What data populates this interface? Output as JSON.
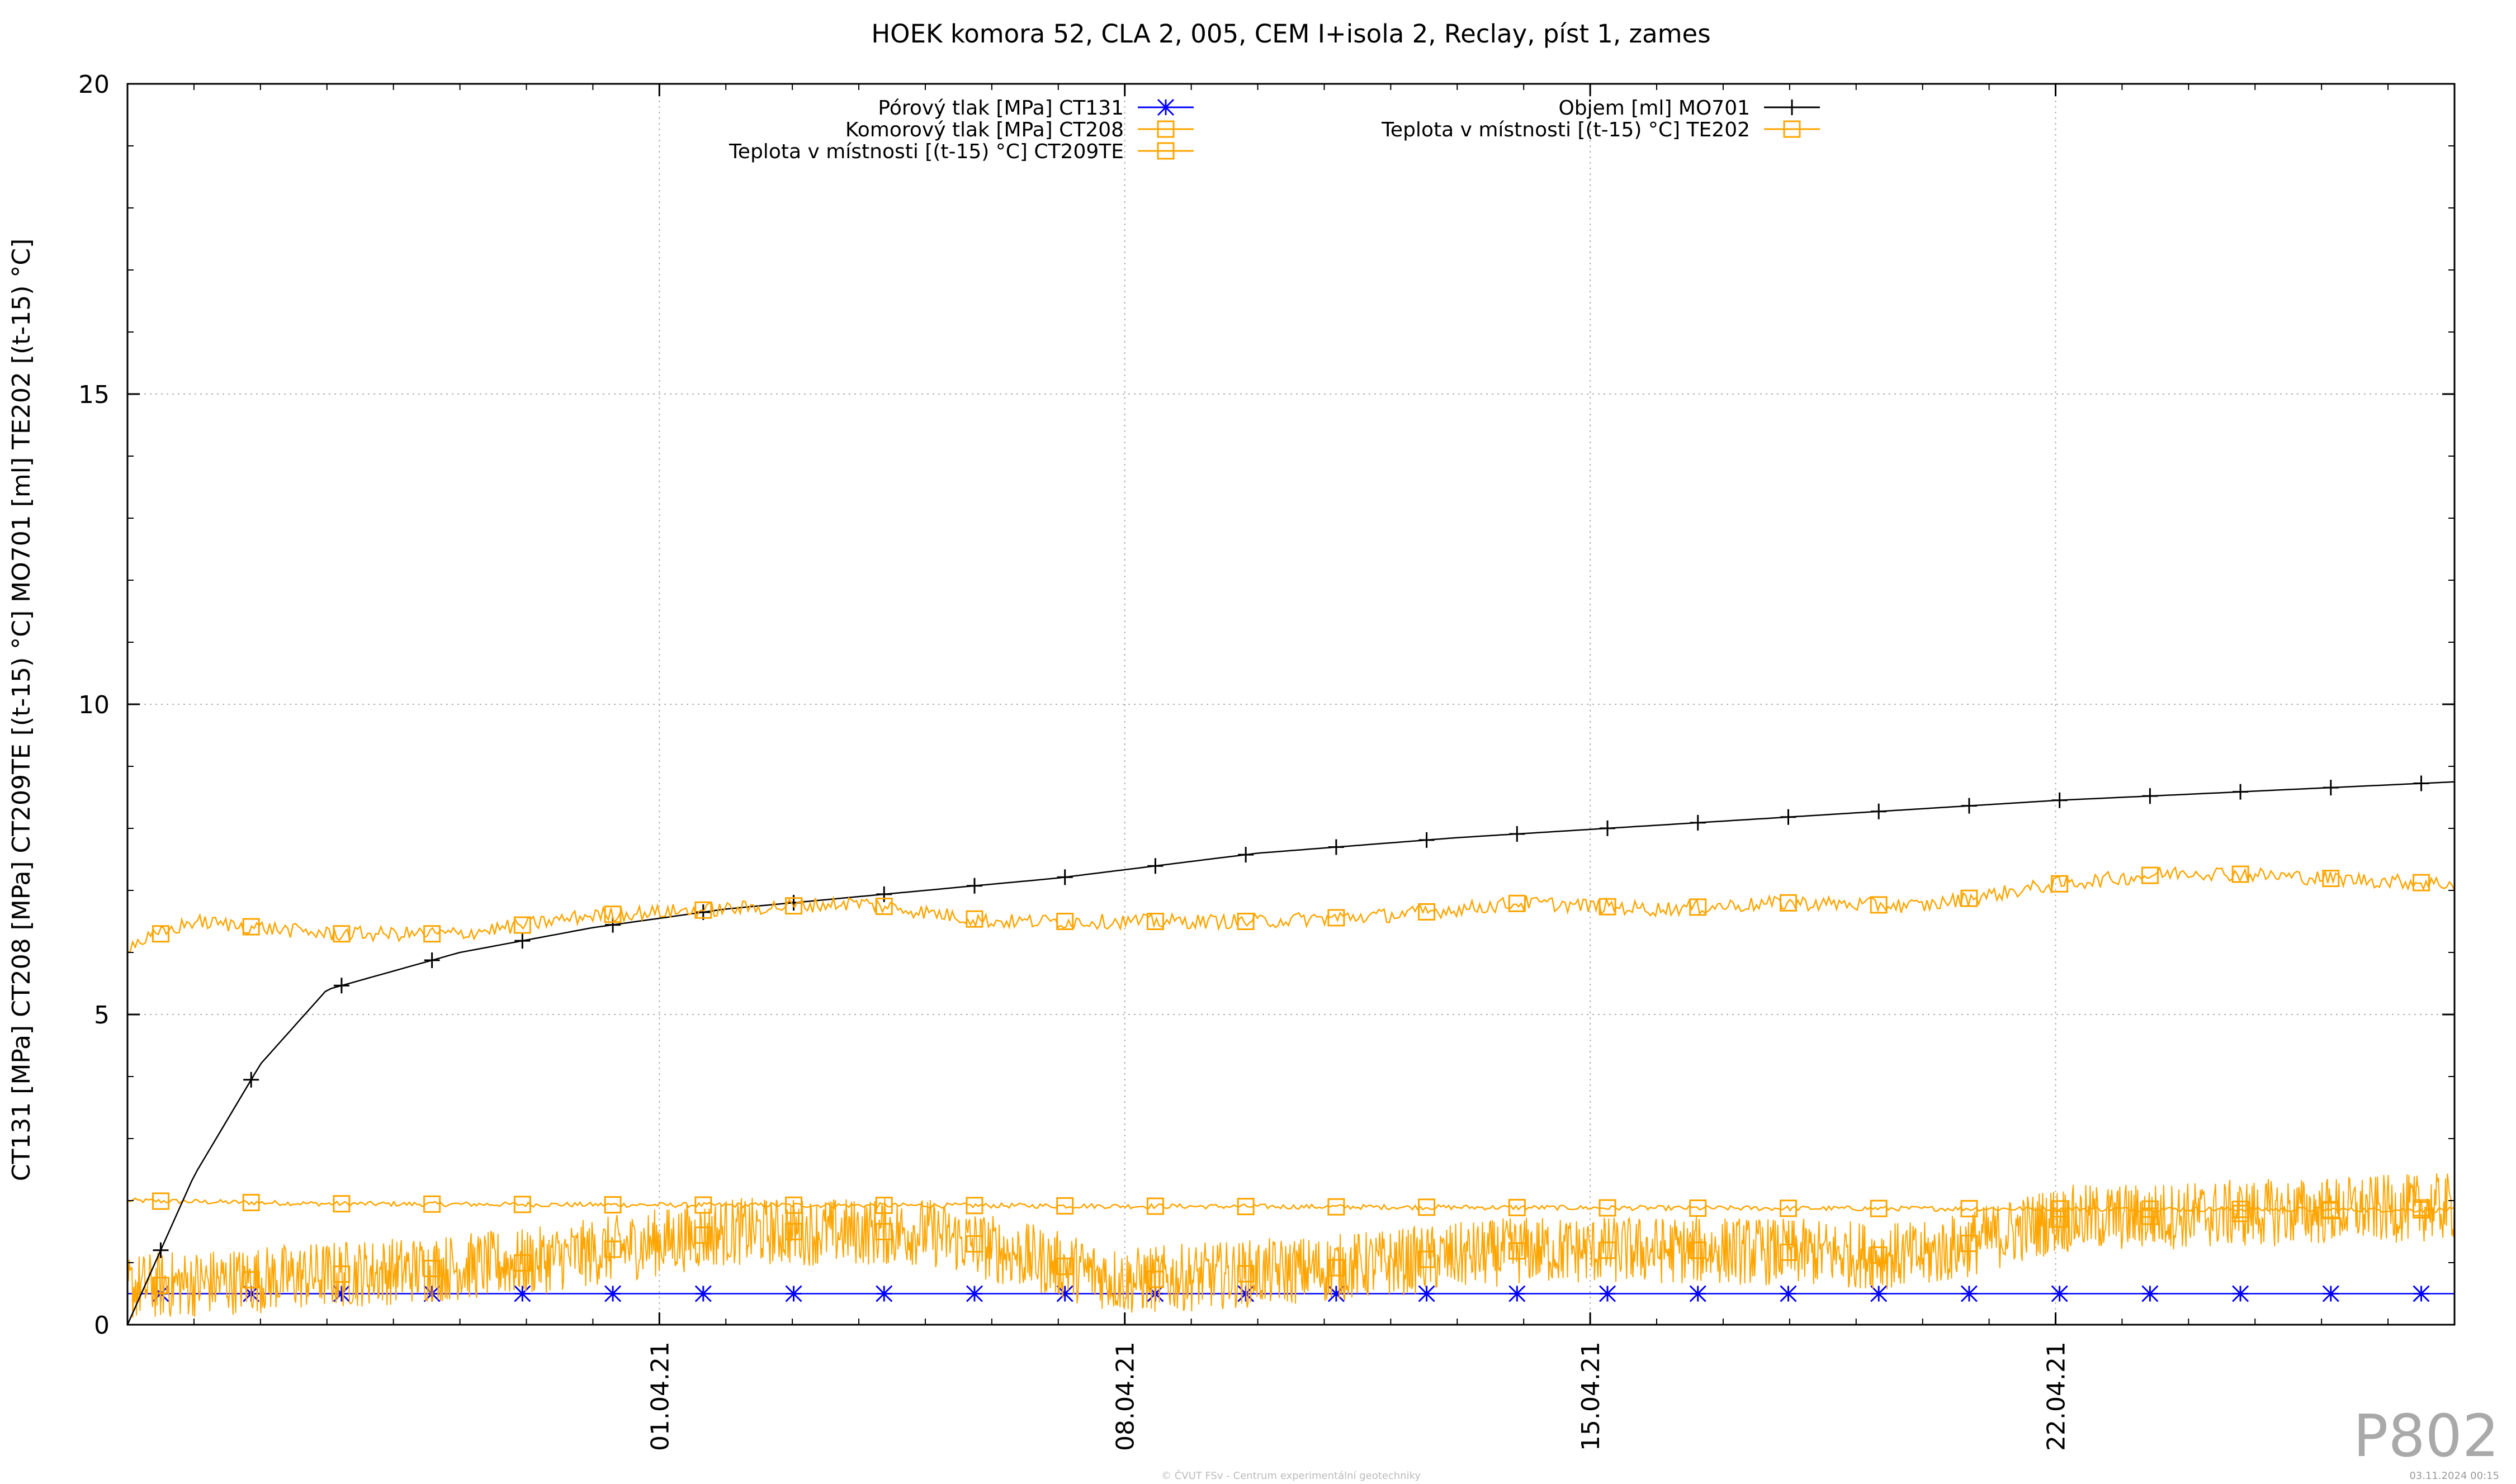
{
  "chart_data": {
    "type": "line",
    "title": "HOEK komora 52, CLA 2, 005, CEM I+isola 2, Reclay, píst 1, zames",
    "ylabel": "CT131 [MPa] CT208 [MPa] CT209TE [(t-15) °C] MO701 [ml] TE202 [(t-15) °C]",
    "xlabel": "",
    "ylim": [
      0,
      20
    ],
    "xlim": [
      "2021-03-24",
      "2021-04-28"
    ],
    "yticks": [
      0,
      5,
      10,
      15,
      20
    ],
    "xticks": [
      {
        "date": "2021-04-01",
        "label": "01.04.21"
      },
      {
        "date": "2021-04-08",
        "label": "08.04.21"
      },
      {
        "date": "2021-04-15",
        "label": "15.04.21"
      },
      {
        "date": "2021-04-22",
        "label": "22.04.21"
      }
    ],
    "grid": true,
    "legend_position": "top",
    "series": [
      {
        "name": "Pórový tlak [MPa] CT131",
        "color": "#0000ff",
        "marker": "asterisk",
        "x": [
          "2021-03-24",
          "2021-04-28"
        ],
        "y": [
          0.5,
          0.5
        ]
      },
      {
        "name": "Komorový tlak [MPa] CT208",
        "color": "#ffa500",
        "marker": "square",
        "x": [
          "2021-03-24",
          "2021-03-27",
          "2021-04-01",
          "2021-04-06",
          "2021-04-11",
          "2021-04-16",
          "2021-04-21",
          "2021-04-28"
        ],
        "y": [
          2.0,
          1.95,
          1.93,
          1.92,
          1.9,
          1.88,
          1.87,
          1.85
        ]
      },
      {
        "name": "Teplota v místnosti [(t-15) °C] CT209TE",
        "color": "#ffa500",
        "marker": "square",
        "x": [
          "2021-03-24",
          "2021-03-27",
          "2021-03-30",
          "2021-04-02",
          "2021-04-05",
          "2021-04-08",
          "2021-04-11",
          "2021-04-14",
          "2021-04-17",
          "2021-04-20",
          "2021-04-22",
          "2021-04-25",
          "2021-04-28"
        ],
        "y": [
          0.6,
          0.8,
          1.0,
          1.5,
          1.5,
          0.7,
          0.9,
          1.2,
          1.2,
          1.1,
          1.7,
          1.8,
          1.9
        ]
      },
      {
        "name": "Objem [ml] MO701",
        "color": "#000000",
        "marker": "plus",
        "x": [
          "2021-03-24",
          "2021-03-25",
          "2021-03-26",
          "2021-03-27",
          "2021-03-29",
          "2021-03-31",
          "2021-04-02",
          "2021-04-04",
          "2021-04-07",
          "2021-04-10",
          "2021-04-13",
          "2021-04-16",
          "2021-04-19",
          "2021-04-22",
          "2021-04-25",
          "2021-04-28"
        ],
        "y": [
          0.0,
          2.4,
          4.2,
          5.4,
          6.0,
          6.4,
          6.7,
          6.9,
          7.2,
          7.6,
          7.85,
          8.05,
          8.25,
          8.45,
          8.6,
          8.75
        ]
      },
      {
        "name": "Teplota v místnosti [(t-15) °C] TE202",
        "color": "#ffa500",
        "marker": "square",
        "x": [
          "2021-03-24",
          "2021-03-25",
          "2021-03-27",
          "2021-03-29",
          "2021-03-31",
          "2021-04-02",
          "2021-04-04",
          "2021-04-06",
          "2021-04-08",
          "2021-04-10",
          "2021-04-12",
          "2021-04-14",
          "2021-04-16",
          "2021-04-18",
          "2021-04-20",
          "2021-04-22",
          "2021-04-24",
          "2021-04-26",
          "2021-04-28"
        ],
        "y": [
          6.1,
          6.5,
          6.3,
          6.3,
          6.6,
          6.7,
          6.8,
          6.5,
          6.5,
          6.5,
          6.6,
          6.8,
          6.7,
          6.8,
          6.75,
          7.1,
          7.3,
          7.2,
          7.1
        ]
      }
    ]
  },
  "watermark": "P802",
  "footer_left": "© ČVUT FSv - Centrum experimentální geotechniky",
  "footer_right": "03.11.2024 00:15"
}
